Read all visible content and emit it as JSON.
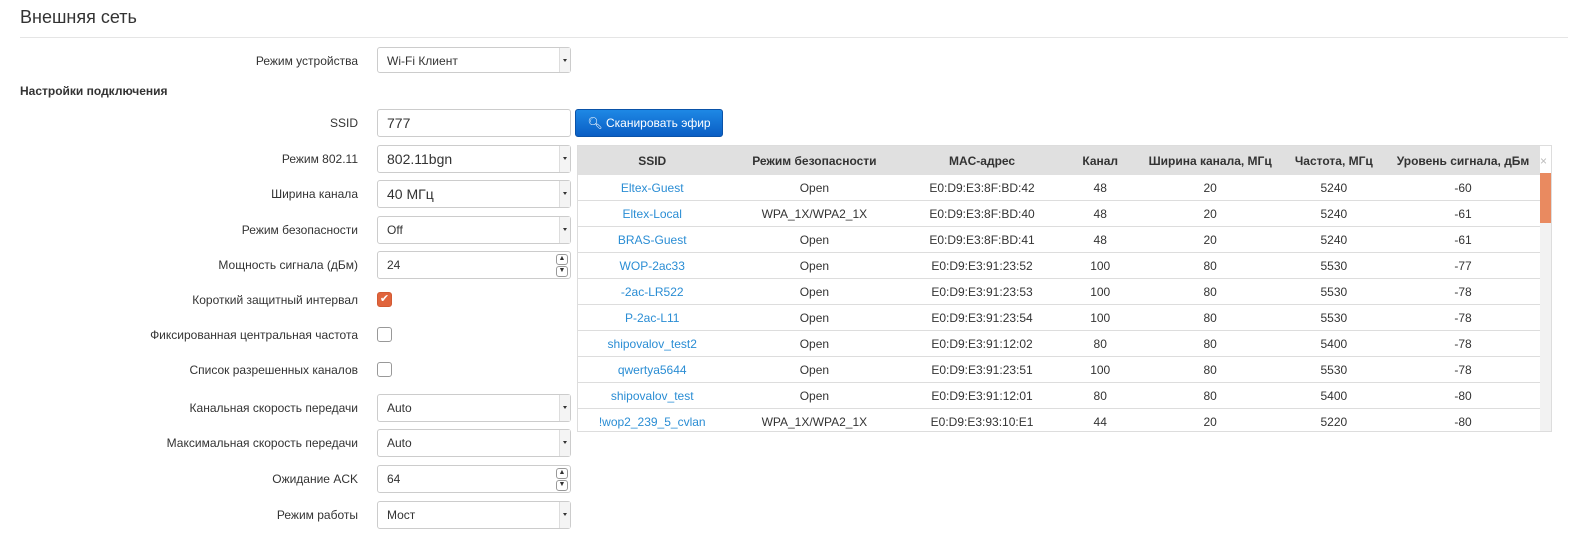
{
  "title": "Внешняя сеть",
  "section": "Настройки подключения",
  "fields": {
    "device_mode": {
      "label": "Режим устройства",
      "value": "Wi-Fi Клиент"
    },
    "ssid": {
      "label": "SSID",
      "value": "777"
    },
    "scan_button": "Сканировать эфир",
    "mode80211": {
      "label": "Режим 802.11",
      "value": "802.11bgn"
    },
    "channel_width": {
      "label": "Ширина канала",
      "value": "40 МГц"
    },
    "security": {
      "label": "Режим безопасности",
      "value": "Off"
    },
    "power": {
      "label": "Мощность сигнала (дБм)",
      "value": "24"
    },
    "short_gi": {
      "label": "Короткий защитный интервал",
      "checked": true
    },
    "fixed_freq": {
      "label": "Фиксированная центральная частота",
      "checked": false
    },
    "allowed_channels": {
      "label": "Список разрешенных каналов",
      "checked": false
    },
    "channel_rate": {
      "label": "Канальная скорость передачи",
      "value": "Auto"
    },
    "max_rate": {
      "label": "Максимальная скорость передачи",
      "value": "Auto"
    },
    "ack": {
      "label": "Ожидание ACK",
      "value": "64"
    },
    "work_mode": {
      "label": "Режим работы",
      "value": "Мост"
    }
  },
  "scan_table": {
    "headers": [
      "SSID",
      "Режим безопасности",
      "MAC-адрес",
      "Канал",
      "Ширина канала, МГц",
      "Частота, МГц",
      "Уровень сигнала, дБм"
    ],
    "close": "×",
    "rows": [
      [
        "Eltex-Guest",
        "Open",
        "E0:D9:E3:8F:BD:42",
        "48",
        "20",
        "5240",
        "-60"
      ],
      [
        "Eltex-Local",
        "WPA_1X/WPA2_1X",
        "E0:D9:E3:8F:BD:40",
        "48",
        "20",
        "5240",
        "-61"
      ],
      [
        "BRAS-Guest",
        "Open",
        "E0:D9:E3:8F:BD:41",
        "48",
        "20",
        "5240",
        "-61"
      ],
      [
        "WOP-2ac33",
        "Open",
        "E0:D9:E3:91:23:52",
        "100",
        "80",
        "5530",
        "-77"
      ],
      [
        "-2ac-LR522",
        "Open",
        "E0:D9:E3:91:23:53",
        "100",
        "80",
        "5530",
        "-78"
      ],
      [
        "P-2ac-L11",
        "Open",
        "E0:D9:E3:91:23:54",
        "100",
        "80",
        "5530",
        "-78"
      ],
      [
        "shipovalov_test2",
        "Open",
        "E0:D9:E3:91:12:02",
        "80",
        "80",
        "5400",
        "-78"
      ],
      [
        "qwertya5644",
        "Open",
        "E0:D9:E3:91:23:51",
        "100",
        "80",
        "5530",
        "-78"
      ],
      [
        "shipovalov_test",
        "Open",
        "E0:D9:E3:91:12:01",
        "80",
        "80",
        "5400",
        "-80"
      ],
      [
        "!wop2_239_5_cvlan",
        "WPA_1X/WPA2_1X",
        "E0:D9:E3:93:10:E1",
        "44",
        "20",
        "5220",
        "-80"
      ]
    ]
  },
  "colors": {
    "accent": "#e0643c",
    "button": "#0a5ec4",
    "link": "#2a8dd4"
  }
}
